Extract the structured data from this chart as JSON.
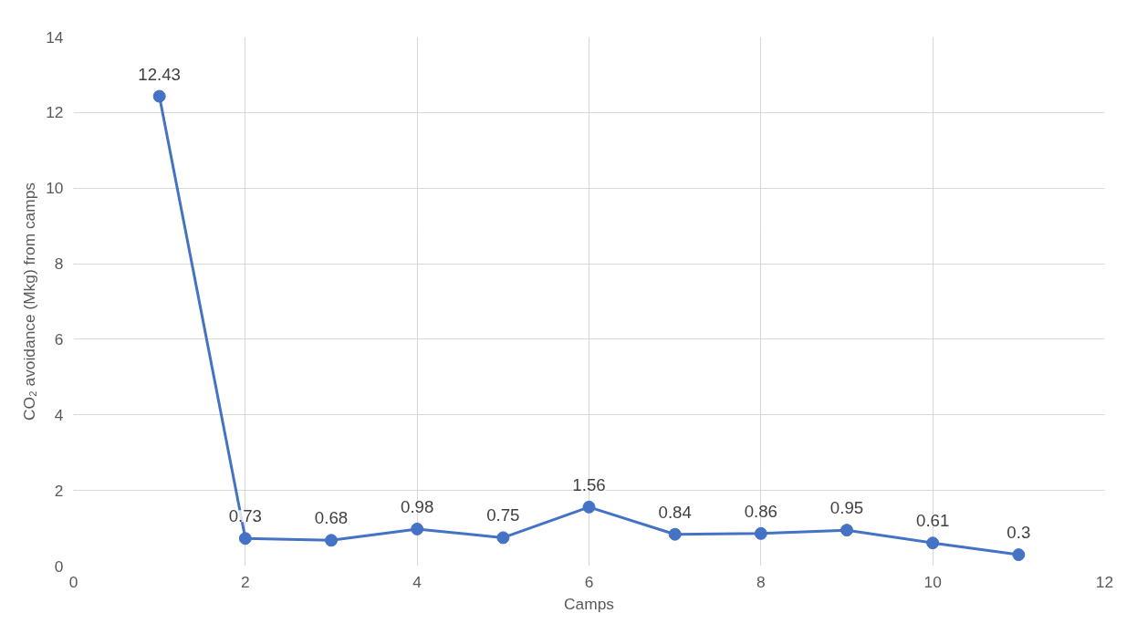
{
  "chart_data": {
    "type": "line",
    "xlabel": "Camps",
    "ylabel": "CO₂ avoidance (Mkg) from camps",
    "x": [
      1,
      2,
      3,
      4,
      5,
      6,
      7,
      8,
      9,
      10,
      11
    ],
    "values": [
      12.43,
      0.73,
      0.68,
      0.98,
      0.75,
      1.56,
      0.84,
      0.86,
      0.95,
      0.61,
      0.3
    ],
    "color": "#4472c4",
    "marker": "circle",
    "line_style": "solid",
    "data_labels": true,
    "xlim": [
      0,
      12
    ],
    "xticks": [
      0,
      2,
      4,
      6,
      8,
      10,
      12
    ],
    "ylim": [
      0,
      14
    ],
    "yticks": [
      0,
      2,
      4,
      6,
      8,
      10,
      12,
      14
    ],
    "grid": true
  }
}
